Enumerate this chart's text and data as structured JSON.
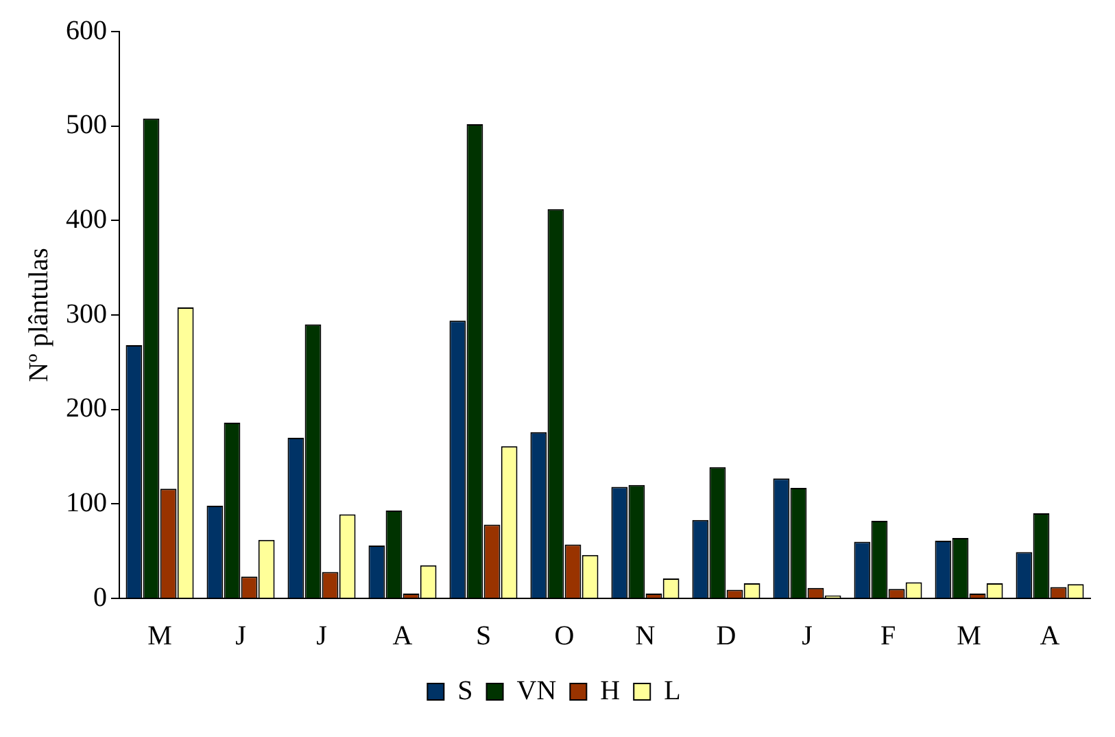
{
  "chart_data": {
    "type": "bar",
    "ylabel": "Nº plântulas",
    "categories": [
      "M",
      "J",
      "J",
      "A",
      "S",
      "O",
      "N",
      "D",
      "J",
      "F",
      "M",
      "A"
    ],
    "series": [
      {
        "name": "S",
        "color": "#003366",
        "values": [
          268,
          98,
          170,
          56,
          294,
          176,
          118,
          83,
          127,
          60,
          61,
          49
        ]
      },
      {
        "name": "VN",
        "color": "#003300",
        "values": [
          508,
          186,
          290,
          93,
          502,
          412,
          120,
          139,
          117,
          82,
          64,
          90
        ]
      },
      {
        "name": "H",
        "color": "#993300",
        "values": [
          116,
          23,
          28,
          5,
          78,
          57,
          5,
          9,
          11,
          10,
          5,
          12
        ]
      },
      {
        "name": "L",
        "color": "#ffff99",
        "values": [
          308,
          62,
          89,
          35,
          161,
          46,
          21,
          16,
          3,
          17,
          16,
          15
        ]
      }
    ],
    "ylim": [
      0,
      600
    ],
    "yticks": [
      0,
      100,
      200,
      300,
      400,
      500,
      600
    ],
    "grid": false,
    "legend": "bottom"
  }
}
